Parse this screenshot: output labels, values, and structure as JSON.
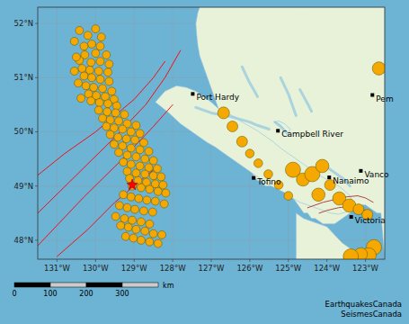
{
  "chart_data": {
    "type": "scatter",
    "xlim": [
      -131.5,
      -122.5
    ],
    "ylim": [
      47.65,
      52.3
    ],
    "xticks": [
      {
        "value": -131,
        "label": "131°W"
      },
      {
        "value": -130,
        "label": "130°W"
      },
      {
        "value": -129,
        "label": "129°W"
      },
      {
        "value": -128,
        "label": "128°W"
      },
      {
        "value": -127,
        "label": "127°W"
      },
      {
        "value": -126,
        "label": "126°W"
      },
      {
        "value": -125,
        "label": "125°W"
      },
      {
        "value": -124,
        "label": "124°W"
      },
      {
        "value": -123,
        "label": "123°W"
      }
    ],
    "yticks": [
      {
        "value": 48,
        "label": "48°N"
      },
      {
        "value": 49,
        "label": "49°N"
      },
      {
        "value": 50,
        "label": "50°N"
      },
      {
        "value": 51,
        "label": "51°N"
      },
      {
        "value": 52,
        "label": "52°N"
      }
    ],
    "grid": true,
    "series": [
      {
        "type": "area",
        "color": "#e8f2d8",
        "x": [
          -122.5,
          -122.5,
          -122.5,
          -122.6,
          -122.7,
          -122.8,
          -122.9,
          -123.0,
          -123.1,
          -123.2,
          -123.3,
          -123.5,
          -123.7,
          -124.0,
          -124.2,
          -124.4,
          -124.5,
          -124.6,
          -124.7,
          -124.8,
          -124.9,
          -125.0,
          -125.1,
          -125.2,
          -125.3,
          -125.4,
          -125.5,
          -125.6,
          -125.7,
          -125.8,
          -125.9,
          -126.0,
          -126.1,
          -126.2,
          -126.3,
          -126.4,
          -126.5,
          -126.6,
          -126.7,
          -126.8,
          -126.9,
          -127.0,
          -127.1,
          -127.2,
          -127.3,
          -127.35,
          -127.4,
          -127.38,
          -127.35,
          -127.3,
          -127.2,
          -127.1,
          -127.0,
          -126.9,
          -126.8,
          -126.7,
          -126.6,
          -126.5,
          -126.4,
          -126.3,
          -126.2,
          -126.1,
          -126.0,
          -125.9,
          -125.8,
          -125.7,
          -125.6,
          -125.5,
          -125.4,
          -125.3,
          -125.2,
          -125.1,
          -125.0,
          -124.9,
          -124.8,
          -124.7,
          -124.6,
          -124.5,
          -124.4,
          -124.3,
          -124.2,
          -124.1,
          -124.0,
          -123.9,
          -123.8,
          -123.7,
          -123.6,
          -123.5,
          -123.4,
          -123.3,
          -123.2,
          -123.1,
          -123.0,
          -122.9,
          -122.8,
          -122.7,
          -122.6,
          -122.5
        ],
        "y": [
          52.3,
          52.3,
          52.3,
          52.3,
          52.3,
          52.3,
          52.3,
          52.3,
          52.3,
          52.3,
          52.3,
          52.3,
          52.3,
          52.3,
          52.3,
          52.3,
          52.3,
          52.3,
          52.3,
          52.3,
          52.3,
          52.3,
          52.3,
          52.3,
          52.3,
          52.3,
          52.3,
          52.3,
          52.3,
          52.3,
          52.3,
          52.3,
          52.3,
          52.3,
          52.3,
          52.3,
          52.3,
          52.3,
          52.3,
          52.3,
          52.3,
          52.3,
          52.3,
          52.3,
          52.3,
          52.2,
          52.0,
          51.8,
          51.6,
          51.4,
          51.2,
          51.0,
          50.8,
          50.6,
          50.4,
          50.2,
          50.0,
          49.8,
          49.7,
          49.6,
          49.5,
          49.4,
          49.3,
          49.2,
          49.1,
          49.1,
          49.0,
          49.0,
          49.0,
          49.0,
          49.0,
          49.0,
          48.9,
          48.8,
          48.7,
          48.6,
          48.5,
          48.5,
          48.4,
          48.4,
          48.35,
          48.3,
          48.3,
          48.3,
          48.3,
          48.35,
          48.4,
          48.45,
          48.5,
          48.55,
          48.6,
          48.65,
          48.65,
          48.6,
          48.55,
          48.5,
          48.5,
          47.65
        ]
      },
      {
        "type": "area",
        "color": "#e8f2d8",
        "x": [
          -128.45,
          -128.2,
          -127.9,
          -127.65,
          -127.4,
          -127.2,
          -127.0,
          -126.8,
          -126.6,
          -126.4,
          -126.2,
          -126.0,
          -125.8,
          -125.6,
          -125.4,
          -125.2,
          -125.0,
          -124.8,
          -124.6,
          -124.4,
          -124.2,
          -124.0,
          -123.8,
          -123.6,
          -123.4,
          -123.3,
          -123.5,
          -123.7,
          -123.9,
          -124.1,
          -124.3,
          -124.5,
          -124.7,
          -124.9,
          -125.1,
          -125.3,
          -125.5,
          -125.7,
          -125.9,
          -126.1,
          -126.3,
          -126.5,
          -126.7,
          -126.9,
          -127.1,
          -127.3,
          -127.5,
          -127.8,
          -128.1,
          -128.45
        ],
        "y": [
          50.55,
          50.75,
          50.85,
          50.82,
          50.75,
          50.65,
          50.55,
          50.42,
          50.35,
          50.28,
          50.18,
          50.1,
          50.02,
          49.92,
          49.82,
          49.7,
          49.6,
          49.5,
          49.4,
          49.3,
          49.2,
          49.12,
          49.05,
          48.95,
          48.82,
          48.65,
          48.52,
          48.48,
          48.5,
          48.55,
          48.6,
          48.65,
          48.7,
          48.78,
          48.88,
          48.95,
          49.02,
          49.12,
          49.22,
          49.32,
          49.42,
          49.52,
          49.62,
          49.72,
          49.8,
          49.9,
          50.0,
          50.15,
          50.35,
          50.55
        ]
      },
      {
        "type": "area",
        "color": "#e8f2d8",
        "x": [
          -124.8,
          -124.6,
          -124.4,
          -124.2,
          -124.0,
          -123.8,
          -123.6,
          -123.4,
          -123.2,
          -123.0,
          -122.8,
          -122.6,
          -122.5,
          -122.5,
          -124.8
        ],
        "y": [
          48.5,
          48.4,
          48.35,
          48.3,
          48.25,
          48.1,
          47.95,
          47.85,
          47.78,
          47.72,
          47.68,
          47.65,
          47.65,
          47.65,
          47.65
        ]
      },
      {
        "type": "area",
        "color": "#e8f2d8",
        "x": [
          -125.35,
          -125.2,
          -125.1,
          -125.0,
          -124.95,
          -125.1,
          -125.25,
          -125.35
        ],
        "y": [
          50.18,
          50.12,
          50.05,
          49.98,
          50.05,
          50.15,
          50.2,
          50.18
        ]
      },
      {
        "type": "line",
        "line_style": "thick",
        "color": "#8fc8df",
        "x": [
          -127.4,
          -127.0,
          -126.5,
          -126.0,
          -125.8,
          -125.5
        ],
        "y": [
          50.45,
          50.35,
          50.28,
          50.18,
          50.12,
          50.05
        ]
      },
      {
        "type": "line",
        "line_style": "thick",
        "color": "#8fc8df",
        "x": [
          -125.35,
          -125.2,
          -125.1,
          -125.0
        ],
        "y": [
          50.18,
          50.1,
          50.02,
          49.95
        ]
      },
      {
        "type": "line",
        "line_style": "thick",
        "color": "#8fc8df",
        "x": [
          -124.0,
          -123.8,
          -123.6,
          -123.5,
          -123.4
        ],
        "y": [
          49.35,
          49.25,
          49.15,
          49.08,
          49.0
        ]
      },
      {
        "type": "line",
        "line_style": "thick",
        "color": "#8fc8df",
        "x": [
          -124.8,
          -124.9,
          -125.0,
          -125.1,
          -125.2
        ],
        "y": [
          50.3,
          50.5,
          50.7,
          50.85,
          51.0
        ]
      },
      {
        "type": "line",
        "line_style": "thick",
        "color": "#8fc8df",
        "x": [
          -125.8,
          -125.9,
          -126.0,
          -126.1,
          -126.2
        ],
        "y": [
          50.65,
          50.78,
          50.9,
          51.05,
          51.2
        ]
      },
      {
        "type": "line",
        "line_style": "thick",
        "color": "#8fc8df",
        "x": [
          -124.4,
          -124.5,
          -124.6,
          -124.7
        ],
        "y": [
          50.38,
          50.52,
          50.65,
          50.78
        ]
      },
      {
        "type": "line",
        "line_style": "solid",
        "color": "red",
        "x": [
          -131.5,
          -130.5,
          -129.5,
          -128.7,
          -128.2,
          -127.8
        ],
        "y": [
          48.5,
          49.2,
          49.9,
          50.5,
          51.0,
          51.5
        ]
      },
      {
        "type": "line",
        "line_style": "solid",
        "color": "red",
        "x": [
          -131.5,
          -130.3,
          -129.3,
          -128.5,
          -128.0
        ],
        "y": [
          47.9,
          48.8,
          49.5,
          50.1,
          50.5
        ]
      },
      {
        "type": "line",
        "line_style": "solid",
        "color": "red",
        "x": [
          -131.5,
          -130.8,
          -130.0,
          -129.5,
          -129.0,
          -128.5,
          -128.2
        ],
        "y": [
          49.2,
          49.6,
          50.0,
          50.3,
          50.6,
          51.0,
          51.3
        ]
      },
      {
        "type": "line",
        "line_style": "solid",
        "color": "red",
        "x": [
          -131.0,
          -130.2,
          -129.5,
          -129.0,
          -128.5
        ],
        "y": [
          47.7,
          48.2,
          48.7,
          49.0,
          49.3
        ]
      },
      {
        "type": "line",
        "line_style": "solid",
        "color": "#aa3333",
        "x": [
          -124.5,
          -124.1,
          -123.8,
          -123.5,
          -123.2,
          -123.0,
          -122.8
        ],
        "y": [
          48.6,
          48.7,
          48.75,
          48.8,
          48.82,
          48.78,
          48.7
        ]
      },
      {
        "type": "line",
        "line_style": "solid",
        "color": "#aa3333",
        "x": [
          -124.2,
          -124.0,
          -123.7,
          -123.5,
          -123.2,
          -123.0
        ],
        "y": [
          48.5,
          48.55,
          48.6,
          48.62,
          48.6,
          48.55
        ]
      },
      {
        "type": "scatter",
        "marker": "circle",
        "color": "#f5a800",
        "x": [
          -130.0,
          -130.2,
          -129.85,
          -130.1,
          -129.88,
          -130.3,
          -130.28,
          -130.0,
          -129.72,
          -130.42,
          -130.12,
          -129.88,
          -129.65,
          -130.35,
          -130.15,
          -129.92,
          -129.68,
          -130.3,
          -130.1,
          -129.88,
          -129.65,
          -130.25,
          -130.05,
          -129.82,
          -129.58,
          -130.18,
          -129.98,
          -129.75,
          -129.52,
          -130.12,
          -129.9,
          -129.68,
          -129.45,
          -129.92,
          -129.7,
          -129.48,
          -129.25,
          -129.82,
          -129.62,
          -129.4,
          -129.18,
          -128.95,
          -129.72,
          -129.52,
          -129.3,
          -129.08,
          -128.85,
          -129.62,
          -129.42,
          -129.2,
          -128.98,
          -128.75,
          -129.52,
          -129.3,
          -129.08,
          -128.85,
          -128.62,
          -129.4,
          -129.18,
          -128.95,
          -128.72,
          -128.5,
          -129.28,
          -129.08,
          -128.85,
          -128.62,
          -128.4,
          -129.18,
          -128.95,
          -128.72,
          -128.5,
          -128.3,
          -129.12,
          -128.9,
          -128.68,
          -128.45,
          -128.25,
          -129.05,
          -128.82,
          -128.6,
          -128.38,
          -128.18,
          -129.28,
          -129.08,
          -128.88,
          -128.67,
          -128.45,
          -128.22,
          -129.38,
          -129.18,
          -128.98,
          -128.75,
          -128.52,
          -129.48,
          -129.25,
          -129.05,
          -128.82,
          -128.6,
          -129.35,
          -129.15,
          -128.95,
          -128.72,
          -128.5,
          -128.28,
          -129.22,
          -129.02,
          -128.82,
          -128.6,
          -128.38,
          -130.42,
          -130.55,
          -130.5,
          -130.55,
          -130.45,
          -130.38,
          -126.68,
          -126.45,
          -126.2,
          -126.0,
          -125.78,
          -125.52,
          -125.25,
          -125.0,
          -124.88,
          -124.62,
          -124.38,
          -124.12,
          -123.92,
          -124.22,
          -123.68,
          -123.42,
          -123.18,
          -122.95,
          -122.78,
          -122.92,
          -123.12,
          -123.38,
          -122.65
        ],
        "y": [
          51.9,
          51.78,
          51.75,
          51.62,
          51.58,
          51.58,
          51.42,
          51.45,
          51.42,
          51.32,
          51.28,
          51.3,
          51.25,
          51.17,
          51.14,
          51.12,
          51.1,
          51.03,
          51.0,
          50.97,
          50.93,
          50.85,
          50.82,
          50.8,
          50.75,
          50.7,
          50.67,
          50.65,
          50.6,
          50.57,
          50.54,
          50.52,
          50.48,
          50.4,
          50.37,
          50.35,
          50.32,
          50.25,
          50.22,
          50.2,
          50.15,
          50.12,
          50.1,
          50.07,
          50.05,
          50.0,
          49.97,
          49.95,
          49.9,
          49.87,
          49.85,
          49.8,
          49.77,
          49.74,
          49.7,
          49.67,
          49.64,
          49.62,
          49.57,
          49.54,
          49.5,
          49.47,
          49.44,
          49.4,
          49.37,
          49.34,
          49.32,
          49.27,
          49.24,
          49.22,
          49.19,
          49.17,
          49.14,
          49.1,
          49.07,
          49.04,
          49.02,
          49.0,
          48.97,
          48.94,
          48.9,
          48.87,
          48.84,
          48.8,
          48.77,
          48.74,
          48.72,
          48.67,
          48.64,
          48.6,
          48.57,
          48.54,
          48.52,
          48.44,
          48.4,
          48.37,
          48.34,
          48.3,
          48.27,
          48.24,
          48.2,
          48.17,
          48.12,
          48.1,
          48.07,
          48.04,
          48.0,
          47.97,
          47.94,
          51.87,
          51.67,
          51.38,
          51.12,
          50.9,
          50.62,
          50.35,
          50.1,
          49.82,
          49.6,
          49.42,
          49.22,
          49.02,
          48.82,
          49.3,
          49.12,
          49.22,
          49.37,
          49.02,
          48.84,
          48.77,
          48.64,
          48.57,
          48.47,
          47.87,
          47.72,
          47.74,
          47.7,
          51.17
        ],
        "sizes": [
          55,
          55,
          55,
          55,
          55,
          55,
          55,
          55,
          55,
          55,
          55,
          55,
          55,
          55,
          55,
          55,
          55,
          55,
          55,
          55,
          55,
          55,
          55,
          55,
          55,
          55,
          55,
          55,
          55,
          55,
          55,
          55,
          55,
          55,
          55,
          55,
          55,
          55,
          55,
          55,
          55,
          55,
          55,
          55,
          55,
          55,
          55,
          55,
          55,
          55,
          55,
          55,
          55,
          55,
          55,
          55,
          55,
          55,
          55,
          55,
          55,
          55,
          55,
          55,
          55,
          55,
          55,
          55,
          55,
          55,
          55,
          55,
          55,
          55,
          55,
          55,
          55,
          55,
          55,
          55,
          55,
          55,
          55,
          55,
          55,
          55,
          55,
          55,
          55,
          55,
          55,
          55,
          55,
          55,
          55,
          55,
          55,
          55,
          55,
          55,
          55,
          55,
          55,
          55,
          55,
          55,
          55,
          55,
          55,
          55,
          55,
          55,
          55,
          55,
          55,
          120,
          100,
          100,
          65,
          65,
          65,
          65,
          65,
          200,
          150,
          200,
          150,
          100,
          150,
          150,
          150,
          100,
          100,
          200,
          200,
          150,
          200,
          150
        ]
      },
      {
        "type": "scatter",
        "marker": "star",
        "color": "red",
        "x": [
          -129.05
        ],
        "y": [
          49.02
        ]
      },
      {
        "type": "scatter",
        "marker": "square",
        "color": "black",
        "x": [
          -127.48,
          -125.27,
          -125.9,
          -123.94,
          -123.12,
          -123.37,
          -122.82
        ],
        "y": [
          50.7,
          50.02,
          49.15,
          49.16,
          49.28,
          48.43,
          50.68
        ],
        "labels": [
          "Port Hardy",
          "Campbell River",
          "Tofino",
          "Nanaimo",
          "Vanco",
          "Victoria",
          "Pem"
        ]
      }
    ],
    "scalebar": {
      "labels": [
        "0",
        "100",
        "200",
        "300"
      ],
      "colors": [
        "black",
        "#cccccc",
        "black",
        "#cccccc"
      ],
      "unit": "km"
    },
    "annotations": [
      "EarthquakesCanada\nSeismesCanada"
    ]
  }
}
